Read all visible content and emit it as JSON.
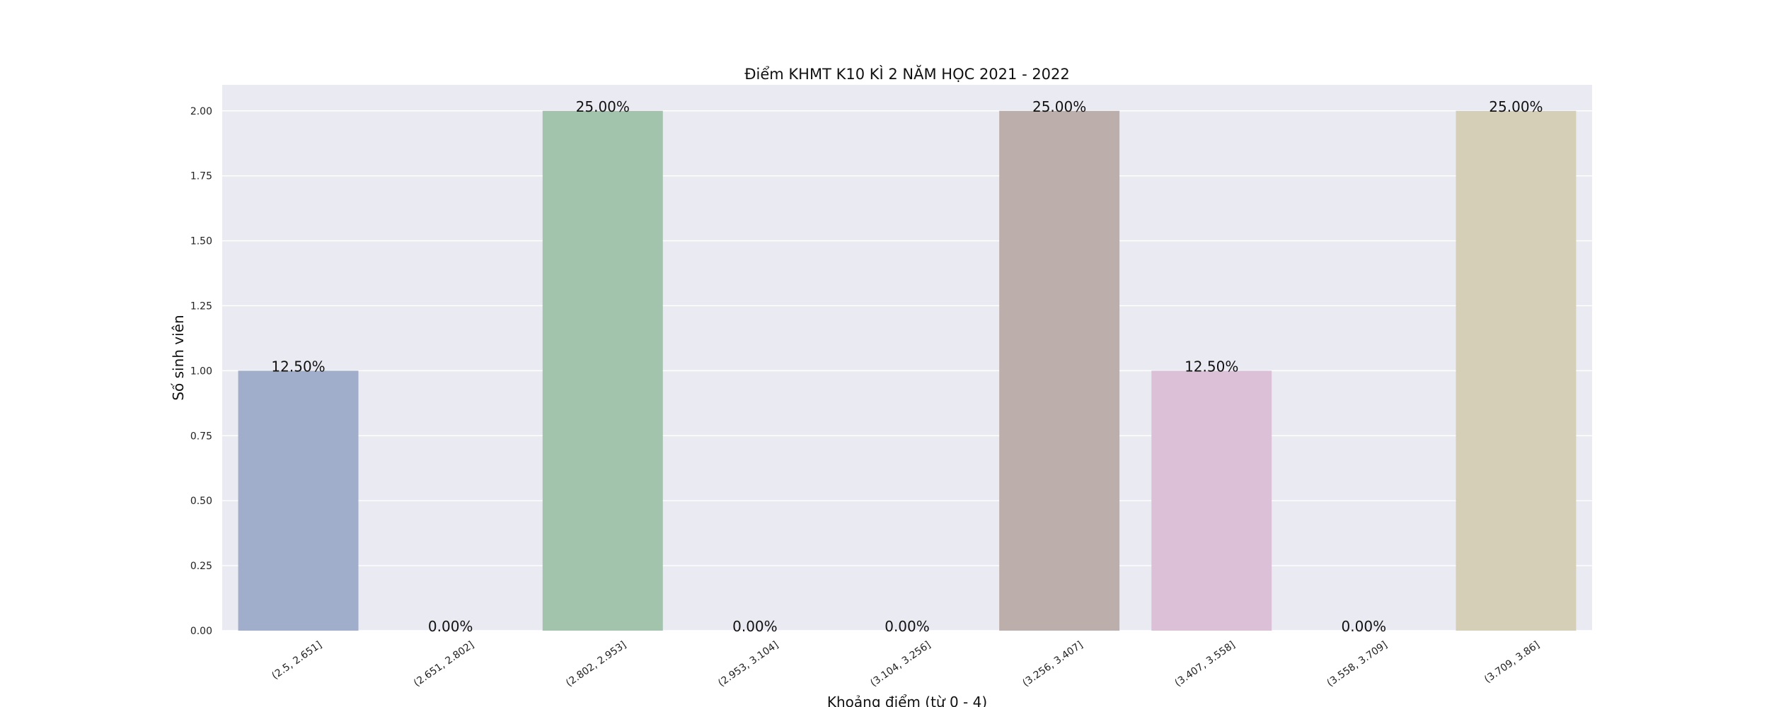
{
  "chart_data": {
    "type": "bar",
    "title": "Điểm KHMT K10 KÌ 2 NĂM HỌC 2021 - 2022",
    "xlabel": "Khoảng điểm (từ 0 - 4)",
    "ylabel": "Số sinh viên",
    "categories": [
      "(2.5, 2.651]",
      "(2.651, 2.802]",
      "(2.802, 2.953]",
      "(2.953, 3.104]",
      "(3.104, 3.256]",
      "(3.256, 3.407]",
      "(3.407, 3.558]",
      "(3.558, 3.709]",
      "(3.709, 3.86]"
    ],
    "values": [
      1,
      0,
      2,
      0,
      0,
      2,
      1,
      0,
      2
    ],
    "data_labels": [
      "12.50%",
      "0.00%",
      "25.00%",
      "0.00%",
      "0.00%",
      "25.00%",
      "12.50%",
      "0.00%",
      "25.00%"
    ],
    "colors": [
      "#a0aecb",
      "#a7c5ad",
      "#a2c3ac",
      "#b9b6c4",
      "#c4b6b6",
      "#bcafab",
      "#dcc0d8",
      "#c8c8c8",
      "#d5cfb8"
    ],
    "ylim": [
      0,
      2.1
    ],
    "yticks": [
      "0.00",
      "0.25",
      "0.50",
      "0.75",
      "1.00",
      "1.25",
      "1.50",
      "1.75",
      "2.00"
    ],
    "ytick_values": [
      0,
      0.25,
      0.5,
      0.75,
      1.0,
      1.25,
      1.5,
      1.75,
      2.0
    ],
    "grid": true,
    "plot_background": "#eaeaf2",
    "grid_color": "#ffffff"
  }
}
